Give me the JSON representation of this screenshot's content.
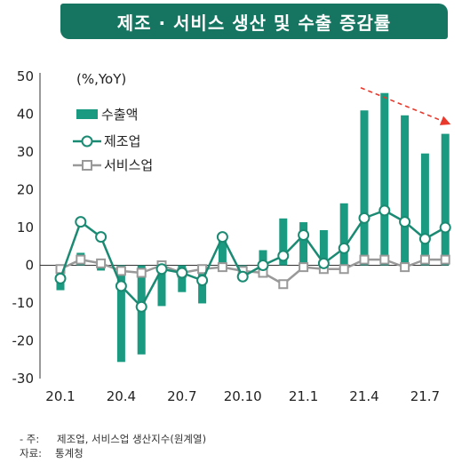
{
  "header": {
    "title": "제조 · 서비스 생산 및 수출 증감률"
  },
  "chart_data": {
    "type": "bar+line",
    "unit_label": "(%,YoY)",
    "categories": [
      "20.1",
      "20.2",
      "20.3",
      "20.4",
      "20.5",
      "20.6",
      "20.7",
      "20.8",
      "20.9",
      "20.10",
      "20.11",
      "20.12",
      "21.1",
      "21.2",
      "21.3",
      "21.4",
      "21.5",
      "21.6",
      "21.7",
      "21.8"
    ],
    "x_tick_labels": [
      "20.1",
      "20.4",
      "20.7",
      "20.10",
      "21.1",
      "21.4",
      "21.7"
    ],
    "x_tick_indices": [
      0,
      3,
      6,
      9,
      12,
      15,
      18
    ],
    "y_ticks": [
      50,
      40,
      30,
      20,
      10,
      0,
      -10,
      -20,
      -30
    ],
    "ylim": [
      -30,
      50
    ],
    "series": [
      {
        "name": "수출액",
        "type": "bar",
        "color": "#1a9a80",
        "values": [
          -6.6,
          3.3,
          -1.4,
          -25.6,
          -23.6,
          -10.8,
          -7.1,
          -10.1,
          7.3,
          -3.6,
          4.0,
          12.4,
          11.4,
          9.3,
          16.4,
          41.0,
          45.6,
          39.7,
          29.6,
          34.8
        ]
      },
      {
        "name": "제조업",
        "type": "line",
        "color": "#1b8a73",
        "marker": "circle",
        "values": [
          -3.5,
          11.5,
          7.5,
          -5.5,
          -11.0,
          -1.0,
          -2.0,
          -4.0,
          7.5,
          -3.0,
          0.0,
          2.5,
          8.0,
          0.5,
          4.5,
          12.5,
          14.5,
          11.5,
          7.0,
          10.0
        ]
      },
      {
        "name": "서비스업",
        "type": "line",
        "color": "#999999",
        "marker": "square",
        "values": [
          -1.0,
          1.5,
          0.5,
          -1.5,
          -2.0,
          0.0,
          -2.0,
          -1.0,
          -0.5,
          -1.5,
          -2.0,
          -5.0,
          -0.5,
          -1.0,
          -1.0,
          1.5,
          1.5,
          -0.5,
          1.5,
          1.5
        ]
      }
    ],
    "trend_arrow": {
      "color": "#e8392c",
      "from_index": 15,
      "from_value": 47,
      "to_index": 19,
      "to_value": 37.5
    },
    "grid": false,
    "legend_placement": "top-left"
  },
  "notes": {
    "row1_label": "- 주:",
    "row1_text": "제조업, 서비스업 생산지수(원계열)",
    "row2_label": "자료:",
    "row2_text": "통계청"
  }
}
